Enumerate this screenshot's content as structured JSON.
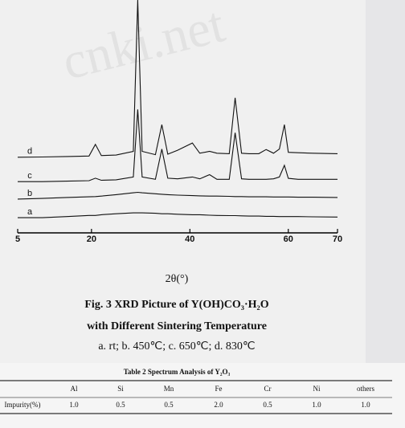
{
  "watermark": "cnki.net",
  "chart_data": {
    "type": "line",
    "x_label": "2θ(°)",
    "xlim": [
      5,
      70
    ],
    "xticks": [
      5,
      20,
      40,
      60,
      70
    ],
    "ylim": [
      0,
      100
    ],
    "x": [
      5,
      10,
      15,
      19.5,
      20.8,
      22,
      25,
      28.5,
      29.4,
      30.3,
      33,
      34.3,
      35.5,
      37.5,
      40.5,
      42,
      44,
      45.5,
      48,
      49.2,
      50.5,
      52,
      54,
      55.5,
      57,
      58.2,
      59.2,
      60,
      62,
      65,
      70
    ],
    "series": [
      {
        "name": "a",
        "color": "#111111",
        "values": [
          6.5,
          6.5,
          7,
          7.5,
          7.5,
          7.8,
          8.2,
          8.6,
          8.6,
          8.6,
          8.4,
          8.2,
          8.2,
          8,
          7.8,
          7.8,
          7.6,
          7.5,
          7.4,
          7.4,
          7.3,
          7.2,
          7.2,
          7.1,
          7.1,
          7,
          7,
          7,
          7,
          6.9,
          6.8
        ]
      },
      {
        "name": "b",
        "color": "#111111",
        "values": [
          14.5,
          14.8,
          15.2,
          15.5,
          15.6,
          15.8,
          16.4,
          17.2,
          17.4,
          17.2,
          16.8,
          16.6,
          16.4,
          16.2,
          16,
          15.9,
          15.8,
          15.8,
          15.7,
          15.6,
          15.6,
          15.5,
          15.5,
          15.5,
          15.4,
          15.4,
          15.4,
          15.4,
          15.3,
          15.3,
          15.2
        ]
      },
      {
        "name": "c",
        "color": "#111111",
        "values": [
          22,
          22,
          22.2,
          22.4,
          23.5,
          22.6,
          22.8,
          24,
          53,
          24,
          23,
          36,
          23.5,
          23.2,
          24,
          23.2,
          25,
          23,
          23,
          43,
          23.2,
          23,
          23,
          23,
          23.2,
          24,
          29,
          23.4,
          23,
          23,
          23
        ]
      },
      {
        "name": "d",
        "color": "#111111",
        "values": [
          32.5,
          32.6,
          32.8,
          33,
          38,
          33.2,
          33.4,
          35,
          100,
          35,
          33.6,
          46.5,
          33.8,
          35.5,
          38.6,
          34.2,
          35,
          34.2,
          34,
          58,
          34.2,
          34,
          34,
          35.8,
          34.2,
          36,
          46.5,
          34.6,
          34.4,
          34.2,
          34
        ]
      }
    ]
  },
  "caption": {
    "line1": "Fig. 3    XRD Picture of Y(OH)CO₃·H₂O",
    "line2": "with Different Sintering Temperature",
    "line3": "a. rt; b. 450℃; c. 650℃; d. 830℃"
  },
  "table": {
    "title": "Table 2    Spectrum Analysis of Y₂O₃",
    "header": [
      "Al",
      "Si",
      "Mn",
      "Fe",
      "Cr",
      "Ni",
      "others"
    ],
    "rows": [
      [
        "Impurity(%)",
        "1.0",
        "0.5",
        "0.5",
        "2.0",
        "0.5",
        "1.0",
        "1.0"
      ]
    ]
  }
}
